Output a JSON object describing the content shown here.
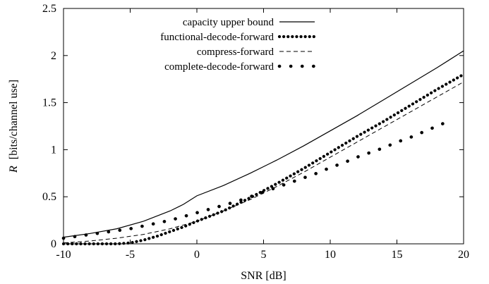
{
  "chart_data": {
    "type": "line",
    "xlabel": "SNR [dB]",
    "ylabel_symbol": "R",
    "ylabel_unit": "[bits/channel use]",
    "xlim": [
      -10,
      20
    ],
    "ylim": [
      0,
      2.5
    ],
    "xticks": [
      "-10",
      "-5",
      "0",
      "5",
      "10",
      "15",
      "20"
    ],
    "yticks": [
      "0",
      "0.5",
      "1",
      "1.5",
      "2",
      "2.5"
    ],
    "grid": false,
    "legend_position": "top-left",
    "series": [
      {
        "name": "capacity upper bound",
        "style": "solid",
        "x": [
          -10,
          -8,
          -6,
          -4,
          -2,
          -1,
          0,
          2,
          4,
          6,
          8,
          10,
          12,
          14,
          16,
          18,
          20
        ],
        "y": [
          0.07,
          0.11,
          0.16,
          0.24,
          0.35,
          0.42,
          0.51,
          0.62,
          0.75,
          0.89,
          1.04,
          1.2,
          1.36,
          1.53,
          1.7,
          1.87,
          2.05
        ]
      },
      {
        "name": "functional-decode-forward",
        "style": "thick-dotted",
        "x": [
          -10,
          -8,
          -6,
          -5,
          -4,
          -3,
          -2,
          -1,
          0,
          2,
          4,
          6,
          8,
          10,
          12,
          14,
          16,
          18,
          20
        ],
        "y": [
          0.0,
          0.0,
          0.0,
          0.01,
          0.04,
          0.08,
          0.13,
          0.18,
          0.24,
          0.35,
          0.49,
          0.64,
          0.8,
          0.97,
          1.14,
          1.3,
          1.47,
          1.64,
          1.8
        ]
      },
      {
        "name": "compress-forward",
        "style": "dashed",
        "x": [
          -10,
          -8,
          -6,
          -4,
          -2,
          0,
          2,
          4,
          6,
          8,
          10,
          12,
          14,
          16,
          18,
          20
        ],
        "y": [
          0.01,
          0.03,
          0.06,
          0.1,
          0.16,
          0.24,
          0.35,
          0.47,
          0.61,
          0.76,
          0.92,
          1.08,
          1.24,
          1.4,
          1.56,
          1.72
        ]
      },
      {
        "name": "complete-decode-forward",
        "style": "sparse-dots",
        "x": [
          -10,
          -9,
          -8,
          -7,
          -6,
          -5,
          -4,
          -3,
          -2,
          -1,
          0,
          1,
          2,
          3,
          4,
          5,
          6,
          7,
          8,
          9,
          10,
          11,
          12,
          13,
          14,
          15,
          16,
          17,
          18,
          19
        ],
        "y": [
          0.06,
          0.08,
          0.1,
          0.12,
          0.14,
          0.16,
          0.19,
          0.22,
          0.25,
          0.29,
          0.33,
          0.37,
          0.41,
          0.45,
          0.5,
          0.55,
          0.6,
          0.65,
          0.7,
          0.75,
          0.81,
          0.86,
          0.92,
          0.97,
          1.02,
          1.08,
          1.13,
          1.19,
          1.25,
          1.31
        ]
      }
    ]
  }
}
